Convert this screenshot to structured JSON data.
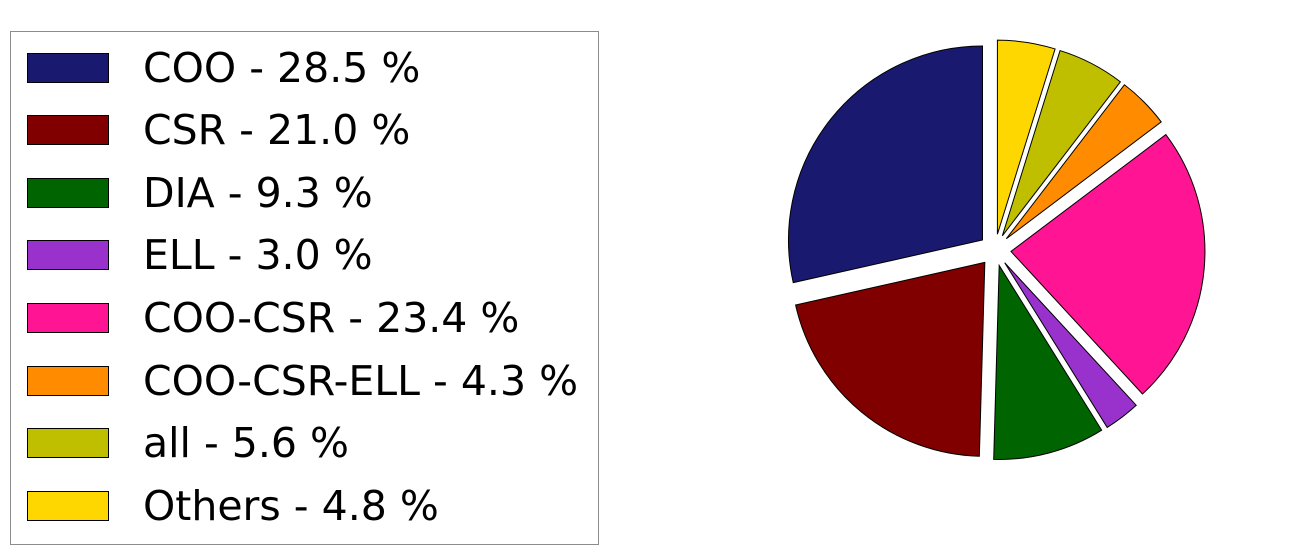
{
  "chart_data": {
    "type": "pie",
    "legend_position": "left",
    "slices": [
      {
        "label": "COO",
        "value": 28.5,
        "legend": "COO - 28.5 %",
        "color": "#191970"
      },
      {
        "label": "CSR",
        "value": 21.0,
        "legend": "CSR - 21.0 %",
        "color": "#800000"
      },
      {
        "label": "DIA",
        "value": 9.3,
        "legend": "DIA - 9.3 %",
        "color": "#006400"
      },
      {
        "label": "ELL",
        "value": 3.0,
        "legend": "ELL - 3.0 %",
        "color": "#9932cc"
      },
      {
        "label": "COO-CSR",
        "value": 23.4,
        "legend": "COO-CSR - 23.4 %",
        "color": "#ff1493"
      },
      {
        "label": "COO-CSR-ELL",
        "value": 4.3,
        "legend": "COO-CSR-ELL - 4.3 %",
        "color": "#ff8c00"
      },
      {
        "label": "all",
        "value": 5.6,
        "legend": "all - 5.6 %",
        "color": "#bfbf00"
      },
      {
        "label": "Others",
        "value": 4.8,
        "legend": "Others - 4.8 %",
        "color": "#ffd700"
      }
    ]
  }
}
